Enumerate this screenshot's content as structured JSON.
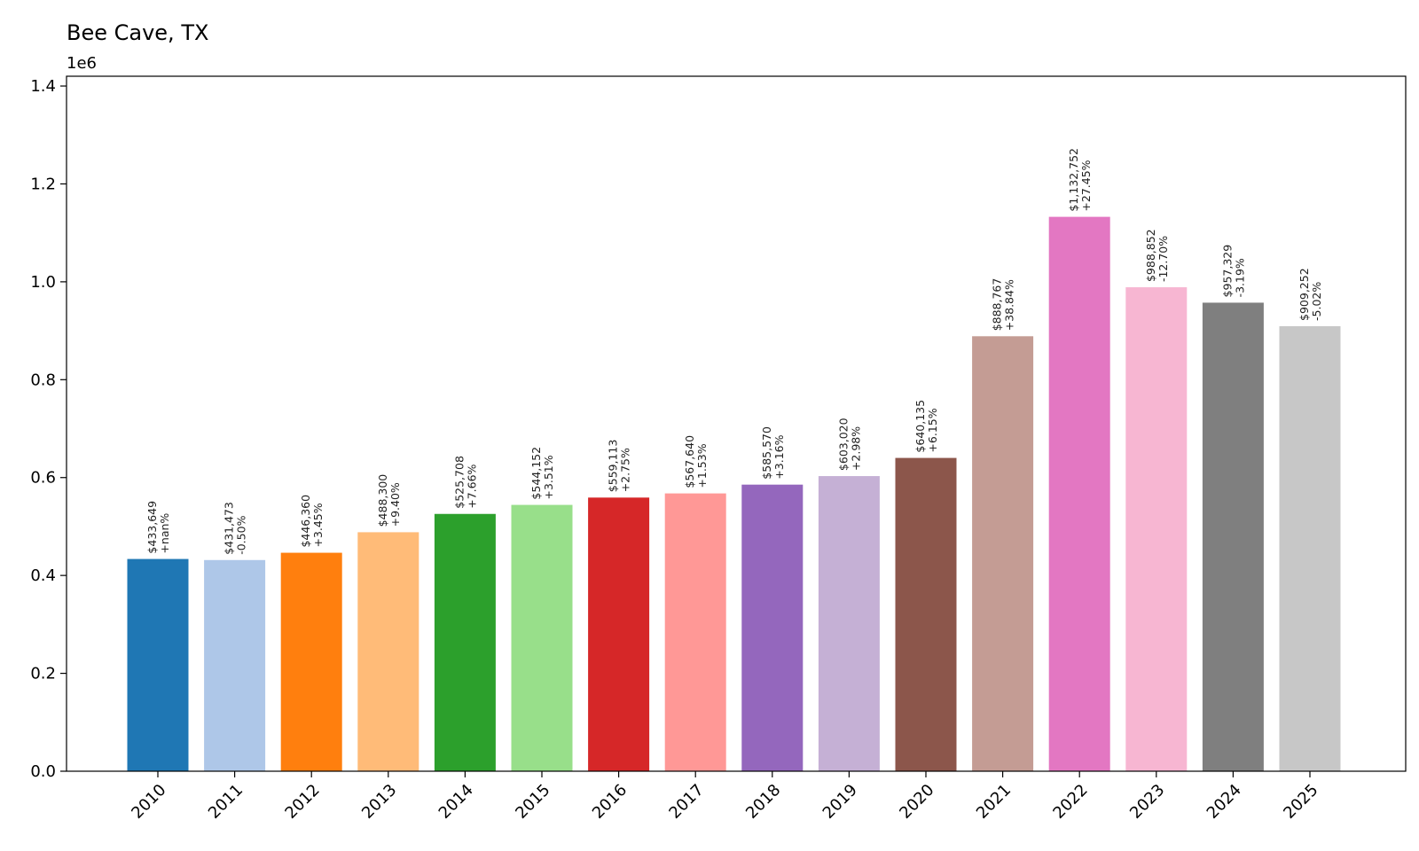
{
  "chart_data": {
    "type": "bar",
    "title": "Bee Cave, TX",
    "y_offset_label": "1e6",
    "xlabel": "",
    "ylabel": "",
    "ylim": [
      0,
      1.42
    ],
    "y_scale_factor": 1000000,
    "yticks": [
      "0.0",
      "0.2",
      "0.4",
      "0.6",
      "0.8",
      "1.0",
      "1.2",
      "1.4"
    ],
    "ytick_values": [
      0,
      0.2,
      0.4,
      0.6,
      0.8,
      1.0,
      1.2,
      1.4
    ],
    "grid": false,
    "legend": "none",
    "categories": [
      "2010",
      "2011",
      "2012",
      "2013",
      "2014",
      "2015",
      "2016",
      "2017",
      "2018",
      "2019",
      "2020",
      "2021",
      "2022",
      "2023",
      "2024",
      "2025"
    ],
    "values": [
      433649,
      431473,
      446360,
      488300,
      525708,
      544152,
      559113,
      567640,
      585570,
      603020,
      640135,
      888767,
      1132752,
      988852,
      957329,
      909252
    ],
    "value_labels": [
      "$433,649",
      "$431,473",
      "$446,360",
      "$488,300",
      "$525,708",
      "$544,152",
      "$559,113",
      "$567,640",
      "$585,570",
      "$603,020",
      "$640,135",
      "$888,767",
      "$1,132,752",
      "$988,852",
      "$957,329",
      "$909,252"
    ],
    "change_labels": [
      "+nan%",
      "-0.50%",
      "+3.45%",
      "+9.40%",
      "+7.66%",
      "+3.51%",
      "+2.75%",
      "+1.53%",
      "+3.16%",
      "+2.98%",
      "+6.15%",
      "+38.84%",
      "+27.45%",
      "-12.70%",
      "-3.19%",
      "-5.02%"
    ],
    "colors": [
      "#1f77b4",
      "#aec7e8",
      "#ff7f0e",
      "#ffbb78",
      "#2ca02c",
      "#98df8a",
      "#d62728",
      "#ff9896",
      "#9467bd",
      "#c5b0d5",
      "#8c564b",
      "#c49c94",
      "#e377c2",
      "#f7b6d2",
      "#7f7f7f",
      "#c7c7c7"
    ]
  }
}
